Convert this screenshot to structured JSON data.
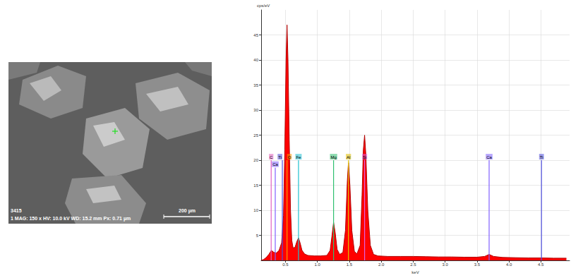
{
  "chart_data": {
    "type": "line",
    "x_label": "keV",
    "y_label": "cps/eV",
    "color": "#ff0000",
    "x": [
      0.12,
      0.16,
      0.2,
      0.24,
      0.28,
      0.32,
      0.36,
      0.4,
      0.44,
      0.47,
      0.49,
      0.51,
      0.525,
      0.54,
      0.56,
      0.58,
      0.6,
      0.62,
      0.65,
      0.68,
      0.705,
      0.73,
      0.76,
      0.8,
      0.85,
      0.95,
      1.05,
      1.15,
      1.2,
      1.23,
      1.254,
      1.28,
      1.31,
      1.35,
      1.4,
      1.44,
      1.47,
      1.487,
      1.51,
      1.54,
      1.58,
      1.62,
      1.67,
      1.7,
      1.72,
      1.74,
      1.76,
      1.79,
      1.83,
      1.88,
      1.95,
      2.1,
      2.3,
      2.5,
      2.7,
      2.9,
      3.1,
      3.3,
      3.5,
      3.62,
      3.69,
      3.76,
      3.9,
      4.1,
      4.3,
      4.5,
      4.7,
      4.9
    ],
    "values": [
      0,
      0.2,
      0.6,
      1.2,
      2.0,
      1.6,
      1.5,
      2.0,
      3.5,
      9,
      22,
      40,
      47,
      40,
      24,
      10,
      4,
      2.5,
      2.6,
      3.8,
      4.5,
      3.5,
      2.0,
      1.3,
      1.0,
      0.9,
      0.9,
      1.0,
      2.0,
      5.0,
      7.6,
      5.5,
      2.2,
      1.2,
      1.6,
      6,
      16,
      19.5,
      15,
      6,
      1.8,
      1.3,
      3,
      13,
      22,
      25,
      21,
      10,
      3,
      1.2,
      0.9,
      0.8,
      0.8,
      0.8,
      0.75,
      0.7,
      0.7,
      0.65,
      0.65,
      0.8,
      1.2,
      0.8,
      0.6,
      0.55,
      0.5,
      0.5,
      0.45,
      0.45
    ],
    "xlim": [
      0.12,
      4.95
    ],
    "xticks": [
      0.5,
      {
        "value": 1,
        "label": "1.0"
      },
      1.5,
      {
        "value": 2,
        "label": "2.0"
      },
      2.5,
      {
        "value": 3,
        "label": "3.0"
      },
      3.5,
      {
        "value": 4,
        "label": "4.0"
      },
      4.5
    ],
    "ylim": [
      0,
      50
    ],
    "yticks": [
      5,
      10,
      15,
      20,
      25,
      30,
      35,
      40,
      45
    ],
    "grid": true,
    "annotations": [
      {
        "text": "C",
        "x": 0.277,
        "y": 20,
        "color": "#e060c0"
      },
      {
        "text": "Ca",
        "x": 0.341,
        "y": 18.5,
        "color": "#8060ff"
      },
      {
        "text": "Ti",
        "x": 0.452,
        "y": 20,
        "color": "#5050e0"
      },
      {
        "text": "O",
        "x": 0.525,
        "y": 20,
        "color": "#ff9900"
      },
      {
        "text": "Fe",
        "x": 0.705,
        "y": 20,
        "color": "#20c0d0"
      },
      {
        "text": "Mg",
        "x": 1.254,
        "y": 20,
        "color": "#30c070"
      },
      {
        "text": "Al",
        "x": 1.487,
        "y": 20,
        "color": "#e0c000"
      },
      {
        "text": "Si",
        "x": 1.74,
        "y": 20,
        "color": "#e060e0"
      },
      {
        "text": "Ca",
        "x": 3.69,
        "y": 20,
        "color": "#8060ff"
      },
      {
        "text": "Ti",
        "x": 4.51,
        "y": 20,
        "color": "#5050e0"
      }
    ]
  },
  "micrograph": {
    "label": "3415",
    "info": "1 MAG: 150 x HV: 10.0 kV WD: 15.2 mm Px: 0.71 µm",
    "scale_bar": "200 µm"
  }
}
